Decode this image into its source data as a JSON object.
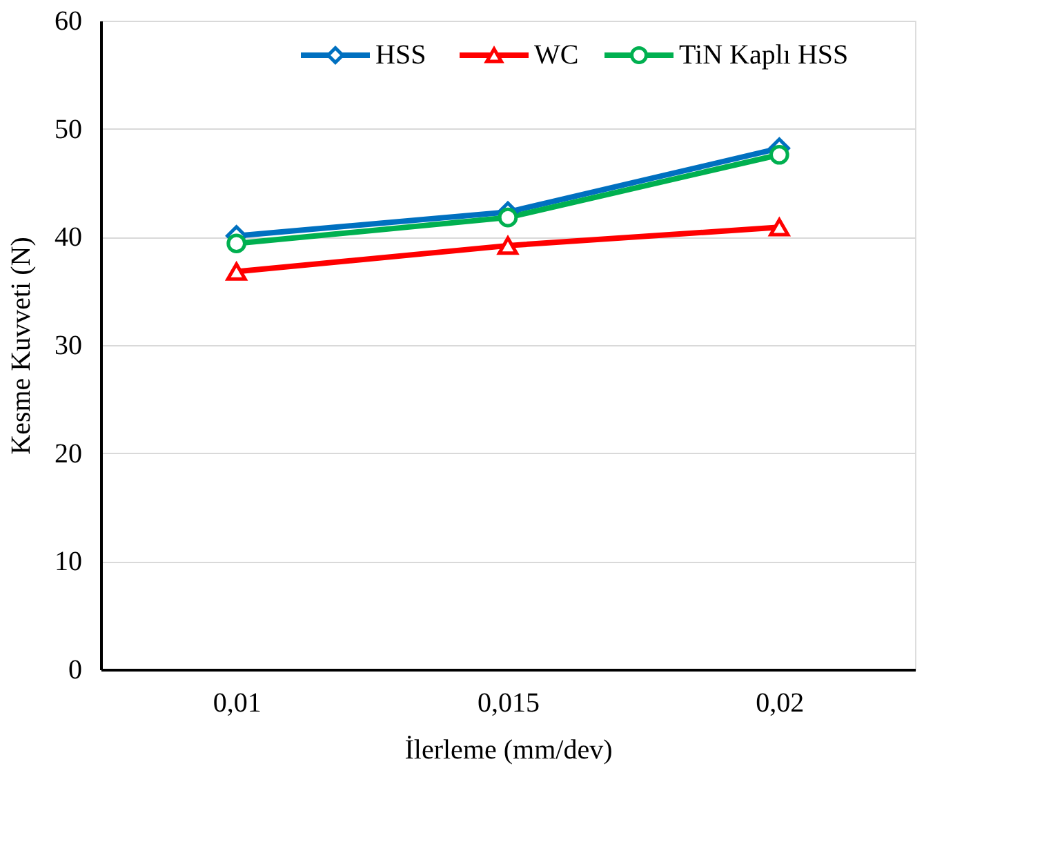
{
  "chart_data": {
    "type": "line",
    "xlabel": "İlerleme (mm/dev)",
    "ylabel": "Kesme Kuvveti (N)",
    "categories": [
      "0,01",
      "0,015",
      "0,02"
    ],
    "series": [
      {
        "name": "HSS",
        "color": "#0070c0",
        "marker": "diamond",
        "values": [
          40.1,
          42.3,
          48.2
        ]
      },
      {
        "name": "WC",
        "color": "#ff0000",
        "marker": "triangle",
        "values": [
          36.8,
          39.2,
          40.9
        ]
      },
      {
        "name": "TiN Kaplı HSS",
        "color": "#00b050",
        "marker": "circle",
        "values": [
          39.4,
          41.8,
          47.6
        ]
      }
    ],
    "ylim": [
      0,
      60
    ],
    "yticks": [
      0,
      10,
      20,
      30,
      40,
      50,
      60
    ],
    "grid": "y",
    "legend": "top right",
    "line_style": "solid"
  }
}
